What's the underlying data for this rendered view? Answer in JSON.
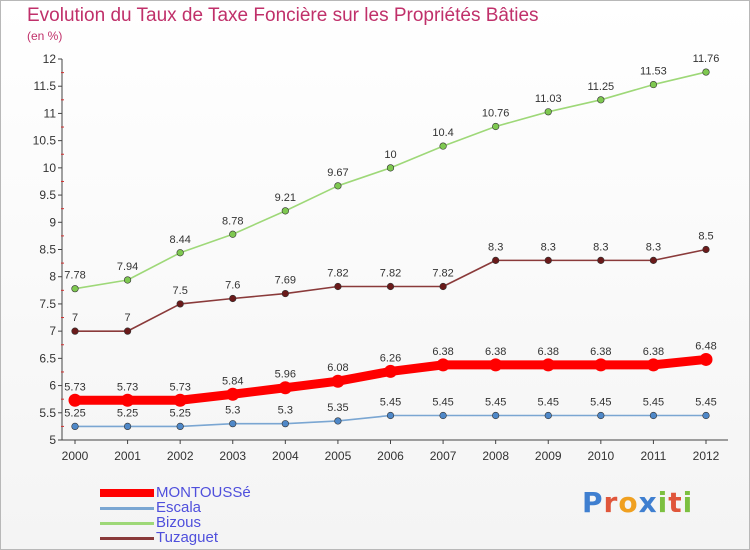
{
  "header": {
    "title": "Evolution du Taux de Taxe Foncière sur les Propriétés Bâties",
    "subtitle": "(en %)"
  },
  "logo": {
    "letters": [
      "P",
      "r",
      "o",
      "x",
      "i",
      "t",
      "i"
    ],
    "colors": [
      "#3f7fd0",
      "#e0563b",
      "#f0a020",
      "#3f7fd0",
      "#7cc040",
      "#e0563b",
      "#7cc040"
    ]
  },
  "chart_data": {
    "type": "line",
    "x": [
      "2000",
      "2001",
      "2002",
      "2003",
      "2004",
      "2005",
      "2006",
      "2007",
      "2008",
      "2009",
      "2010",
      "2011",
      "2012"
    ],
    "ylim": [
      5,
      12
    ],
    "yticks": [
      "5",
      "5.5",
      "6",
      "6.5",
      "7",
      "7.5",
      "8",
      "8.5",
      "9",
      "9.5",
      "10",
      "10.5",
      "11",
      "11.5",
      "12"
    ],
    "grid": false,
    "legend_position": "bottom-left",
    "series": [
      {
        "name": "MONTOUSSé",
        "color": "#ff0000",
        "marker": "#ff0000",
        "style": "thick",
        "values": [
          5.73,
          5.73,
          5.73,
          5.84,
          5.96,
          6.08,
          6.26,
          6.38,
          6.38,
          6.38,
          6.38,
          6.38,
          6.48
        ],
        "labels": [
          "5.73",
          "5.73",
          "5.73",
          "5.84",
          "5.96",
          "6.08",
          "6.26",
          "6.38",
          "6.38",
          "6.38",
          "6.38",
          "6.38",
          "6.48"
        ]
      },
      {
        "name": "Escala",
        "color": "#7aa6d2",
        "marker": "#4f88c8",
        "style": "thin",
        "values": [
          5.25,
          5.25,
          5.25,
          5.3,
          5.3,
          5.35,
          5.45,
          5.45,
          5.45,
          5.45,
          5.45,
          5.45,
          5.45
        ],
        "labels": [
          "5.25",
          "5.25",
          "5.25",
          "5.3",
          "5.3",
          "5.35",
          "5.45",
          "5.45",
          "5.45",
          "5.45",
          "5.45",
          "5.45",
          "5.45"
        ]
      },
      {
        "name": "Bizous",
        "color": "#9ed878",
        "marker": "#7ec850",
        "style": "thin",
        "values": [
          7.78,
          7.94,
          8.44,
          8.78,
          9.21,
          9.67,
          10,
          10.4,
          10.76,
          11.03,
          11.25,
          11.53,
          11.76
        ],
        "labels": [
          "7.78",
          "7.94",
          "8.44",
          "8.78",
          "9.21",
          "9.67",
          "10",
          "10.4",
          "10.76",
          "11.03",
          "11.25",
          "11.53",
          "11.76"
        ]
      },
      {
        "name": "Tuzaguet",
        "color": "#8a3a3a",
        "marker": "#6a1a1a",
        "style": "thin",
        "values": [
          7,
          7,
          7.5,
          7.6,
          7.69,
          7.82,
          7.82,
          7.82,
          8.3,
          8.3,
          8.3,
          8.3,
          8.5
        ],
        "labels": [
          "7",
          "7",
          "7.5",
          "7.6",
          "7.69",
          "7.82",
          "7.82",
          "7.82",
          "8.3",
          "8.3",
          "8.3",
          "8.3",
          "8.5"
        ]
      }
    ]
  }
}
